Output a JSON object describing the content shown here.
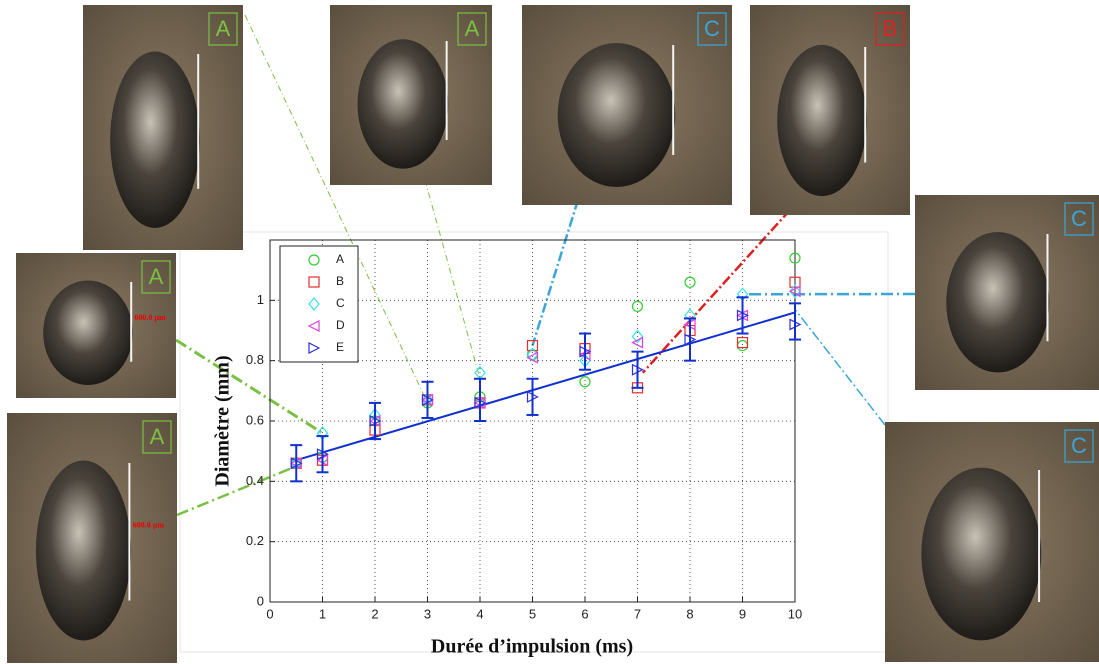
{
  "chart_data": {
    "type": "scatter",
    "x_label": "Durée d’impulsion (ms)",
    "y_label": "Diamètre  (mm)",
    "x": [
      0.5,
      1,
      2,
      3,
      4,
      5,
      6,
      7,
      8,
      9,
      10
    ],
    "series": [
      {
        "name": "A",
        "color": "#33cc33",
        "marker": "circle",
        "values": [
          0.46,
          0.48,
          0.6,
          0.66,
          0.68,
          0.82,
          0.73,
          0.98,
          1.06,
          0.85,
          1.14
        ]
      },
      {
        "name": "B",
        "color": "#e03030",
        "marker": "square",
        "values": [
          0.46,
          0.47,
          0.57,
          0.67,
          0.66,
          0.85,
          0.84,
          0.71,
          0.9,
          0.86,
          1.06
        ]
      },
      {
        "name": "C",
        "color": "#33e0f0",
        "marker": "diamond",
        "values": [
          0.46,
          0.56,
          0.62,
          0.67,
          0.76,
          0.82,
          0.8,
          0.88,
          0.95,
          1.02,
          1.03
        ]
      },
      {
        "name": "D",
        "color": "#e040e0",
        "marker": "triangle-left",
        "values": [
          0.46,
          0.47,
          0.6,
          0.67,
          0.66,
          0.81,
          0.82,
          0.86,
          0.92,
          0.95,
          1.03
        ]
      },
      {
        "name": "E",
        "color": "#3030e0",
        "marker": "triangle-right",
        "values": [
          0.46,
          0.49,
          0.6,
          0.67,
          0.66,
          0.68,
          0.83,
          0.77,
          0.87,
          0.95,
          0.92
        ]
      }
    ],
    "error_bars": {
      "color": "#1030d0",
      "values": [
        0.46,
        0.49,
        0.6,
        0.67,
        0.67,
        0.68,
        0.83,
        0.77,
        0.87,
        0.95,
        0.93
      ],
      "errors": [
        0.06,
        0.06,
        0.06,
        0.06,
        0.07,
        0.06,
        0.06,
        0.06,
        0.07,
        0.06,
        0.06
      ]
    },
    "fit": {
      "color": "#1030d0",
      "x": [
        0.5,
        10
      ],
      "values": [
        0.47,
        0.96
      ]
    },
    "xlim": [
      0,
      10
    ],
    "ylim": [
      0,
      1.2
    ],
    "xticks": [
      0,
      1,
      2,
      3,
      4,
      5,
      6,
      7,
      8,
      9,
      10
    ],
    "yticks": [
      0,
      0.2,
      0.4,
      0.6,
      0.8,
      1
    ],
    "grid": true,
    "legend": "upper left"
  },
  "photos": [
    {
      "label": "A",
      "color": "#7ac143"
    },
    {
      "label": "A",
      "color": "#7ac143"
    },
    {
      "label": "C",
      "color": "#3aa6d8"
    },
    {
      "label": "B",
      "color": "#e02020"
    },
    {
      "label": "C",
      "color": "#3aa6d8"
    },
    {
      "label": "A",
      "color": "#7ac143",
      "scale_label": "600.0 µm"
    },
    {
      "label": "A",
      "color": "#7ac143",
      "scale_label": "600.0 µm"
    },
    {
      "label": "C",
      "color": "#3aa6d8"
    }
  ]
}
